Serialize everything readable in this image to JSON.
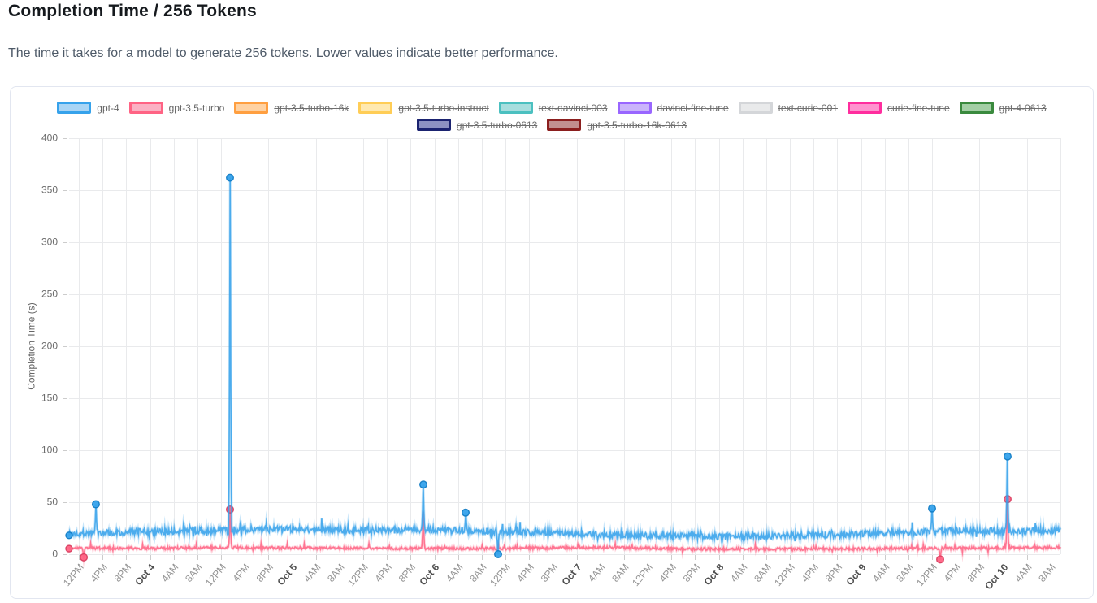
{
  "page": {
    "title": "Completion Time / 256 Tokens",
    "subtitle": "The time it takes for a model to generate 256 tokens. Lower values indicate better performance."
  },
  "legend": {
    "rows": [
      [
        {
          "label": "gpt-4",
          "border": "#36a2eb",
          "fill": "#a9d5f5",
          "struck": false
        },
        {
          "label": "gpt-3.5-turbo",
          "border": "#ff6384",
          "fill": "#fbb1c4",
          "struck": false
        },
        {
          "label": "gpt-3.5-turbo-16k",
          "border": "#ff9f40",
          "fill": "#ffd2a2",
          "struck": true
        },
        {
          "label": "gpt-3.5-turbo-instruct",
          "border": "#ffcd56",
          "fill": "#ffe9b0",
          "struck": true
        },
        {
          "label": "text-davinci-003",
          "border": "#4bc0c0",
          "fill": "#a7dede",
          "struck": true
        },
        {
          "label": "davinci-fine-tune",
          "border": "#9966ff",
          "fill": "#cab4fb",
          "struck": true
        },
        {
          "label": "text-curie-001",
          "border": "#d4d6d9",
          "fill": "#e9eaeb",
          "struck": true
        },
        {
          "label": "curie-fine-tune",
          "border": "#ff2d9e",
          "fill": "#ff93cf",
          "struck": true
        },
        {
          "label": "gpt-4-0613",
          "border": "#3a8a3e",
          "fill": "#a3cfa5",
          "struck": true
        }
      ],
      [
        {
          "label": "gpt-3.5-turbo-0613",
          "border": "#1b2370",
          "fill": "#8d92c2",
          "struck": true
        },
        {
          "label": "gpt-3.5-turbo-16k-0613",
          "border": "#8b1e1e",
          "fill": "#c28f8f",
          "struck": true
        }
      ]
    ]
  },
  "chart_data": {
    "type": "line",
    "title": "Completion Time / 256 Tokens",
    "xlabel": "",
    "ylabel": "Completion Time (s)",
    "y_axis": {
      "min": 0,
      "max": 400,
      "step": 50,
      "ticks": [
        0,
        50,
        100,
        150,
        200,
        250,
        300,
        350,
        400
      ]
    },
    "x_axis": {
      "tick_labels": [
        "12PM",
        "4PM",
        "8PM",
        "Oct 4",
        "4AM",
        "8AM",
        "12PM",
        "4PM",
        "8PM",
        "Oct 5",
        "4AM",
        "8AM",
        "12PM",
        "4PM",
        "8PM",
        "Oct 6",
        "4AM",
        "8AM",
        "12PM",
        "4PM",
        "8PM",
        "Oct 7",
        "4AM",
        "8AM",
        "12PM",
        "4PM",
        "8PM",
        "Oct 8",
        "4AM",
        "8AM",
        "12PM",
        "4PM",
        "8PM",
        "Oct 9",
        "4AM",
        "8AM",
        "12PM",
        "4PM",
        "8PM",
        "Oct 10",
        "4AM",
        "8AM"
      ],
      "bold_prefix": "Oct",
      "rotation_deg": -50,
      "span": "Oct 3 ~10:30AM to Oct 10 ~9:30AM, tick every 4 hours"
    },
    "grid": true,
    "legend_position": "top",
    "series": [
      {
        "name": "gpt-3.5-turbo",
        "color": "#ff6384",
        "hidden": false,
        "seed": 99,
        "points_n": 1700,
        "baseline": [
          [
            0,
            6
          ],
          [
            0.08,
            5.5
          ],
          [
            0.16,
            6.5
          ],
          [
            0.24,
            6
          ],
          [
            0.34,
            5.5
          ],
          [
            0.44,
            5.5
          ],
          [
            0.54,
            6.5
          ],
          [
            0.64,
            5
          ],
          [
            0.74,
            5
          ],
          [
            0.84,
            5.5
          ],
          [
            0.92,
            6
          ],
          [
            1,
            6.5
          ]
        ],
        "noise": {
          "amp": 1.3,
          "burst_p": 0.025,
          "burst_max": 4,
          "down_p": 0.008,
          "down_max": 3.5
        },
        "spikes": [
          {
            "f": 0.0148,
            "v": -3,
            "dot": true
          },
          {
            "f": 0.1623,
            "v": 43,
            "dot": true
          },
          {
            "f": 0.3574,
            "v": 41,
            "dot": false
          },
          {
            "f": 0.8787,
            "v": -5,
            "dot": true
          },
          {
            "f": 0.9467,
            "v": 53,
            "dot": true
          }
        ],
        "start_dot": true,
        "key_points": [
          {
            "time": "typical level",
            "value": "4-8 s"
          },
          {
            "time": "Oct 4 ~1:30PM",
            "value": 43
          },
          {
            "time": "Oct 5 ~10PM",
            "value": 41
          },
          {
            "time": "Oct 9 ~1PM",
            "value": -5
          },
          {
            "time": "Oct 10 ~4AM",
            "value": 53
          }
        ]
      },
      {
        "name": "gpt-4",
        "color": "#36a2eb",
        "hidden": false,
        "seed": 1337,
        "points_n": 1700,
        "baseline": [
          [
            0,
            20
          ],
          [
            0.04,
            21
          ],
          [
            0.1,
            22
          ],
          [
            0.16,
            23
          ],
          [
            0.22,
            24
          ],
          [
            0.3,
            23
          ],
          [
            0.36,
            24
          ],
          [
            0.42,
            22
          ],
          [
            0.48,
            21
          ],
          [
            0.54,
            19
          ],
          [
            0.6,
            18
          ],
          [
            0.66,
            17
          ],
          [
            0.72,
            18
          ],
          [
            0.78,
            19
          ],
          [
            0.84,
            21
          ],
          [
            0.9,
            23
          ],
          [
            0.95,
            22
          ],
          [
            1,
            23
          ]
        ],
        "noise": {
          "amp": 3.0,
          "burst_p": 0.03,
          "burst_max": 9,
          "down_p": 0.01,
          "down_max": 7
        },
        "spikes": [
          {
            "f": 0.027,
            "v": 48,
            "dot": true
          },
          {
            "f": 0.1623,
            "v": 362,
            "dot": true
          },
          {
            "f": 0.3574,
            "v": 67,
            "dot": true
          },
          {
            "f": 0.4,
            "v": 40,
            "dot": true
          },
          {
            "f": 0.4328,
            "v": 0,
            "dot": true
          },
          {
            "f": 0.8705,
            "v": 44,
            "dot": true
          },
          {
            "f": 0.9467,
            "v": 94,
            "dot": true
          }
        ],
        "start_dot": true,
        "key_points": [
          {
            "time": "typical level",
            "value": "15-30 s"
          },
          {
            "time": "Oct 3 ~4PM",
            "value": 48
          },
          {
            "time": "Oct 4 ~1:30PM",
            "value": 362
          },
          {
            "time": "Oct 5 ~10PM",
            "value": 67
          },
          {
            "time": "Oct 6 ~5AM",
            "value": 40
          },
          {
            "time": "Oct 6 ~10AM",
            "value": 0
          },
          {
            "time": "Oct 9 ~12PM",
            "value": 44
          },
          {
            "time": "Oct 10 ~4AM",
            "value": 94
          }
        ]
      },
      {
        "name": "gpt-3.5-turbo-16k",
        "color": "#ff9f40",
        "hidden": true
      },
      {
        "name": "gpt-3.5-turbo-instruct",
        "color": "#ffcd56",
        "hidden": true
      },
      {
        "name": "text-davinci-003",
        "color": "#4bc0c0",
        "hidden": true
      },
      {
        "name": "davinci-fine-tune",
        "color": "#9966ff",
        "hidden": true
      },
      {
        "name": "text-curie-001",
        "color": "#d4d6d9",
        "hidden": true
      },
      {
        "name": "curie-fine-tune",
        "color": "#ff2d9e",
        "hidden": true
      },
      {
        "name": "gpt-4-0613",
        "color": "#3a8a3e",
        "hidden": true
      },
      {
        "name": "gpt-3.5-turbo-0613",
        "color": "#1b2370",
        "hidden": true
      },
      {
        "name": "gpt-3.5-turbo-16k-0613",
        "color": "#8b1e1e",
        "hidden": true
      }
    ],
    "colors": {
      "grid": "#e9eaec",
      "axis_tick": "#cccccc",
      "y_tick_text": "#6b6b6b",
      "x_time_text": "#949494",
      "x_date_text": "#4f4f4f",
      "axis_title_text": "#666666"
    }
  }
}
